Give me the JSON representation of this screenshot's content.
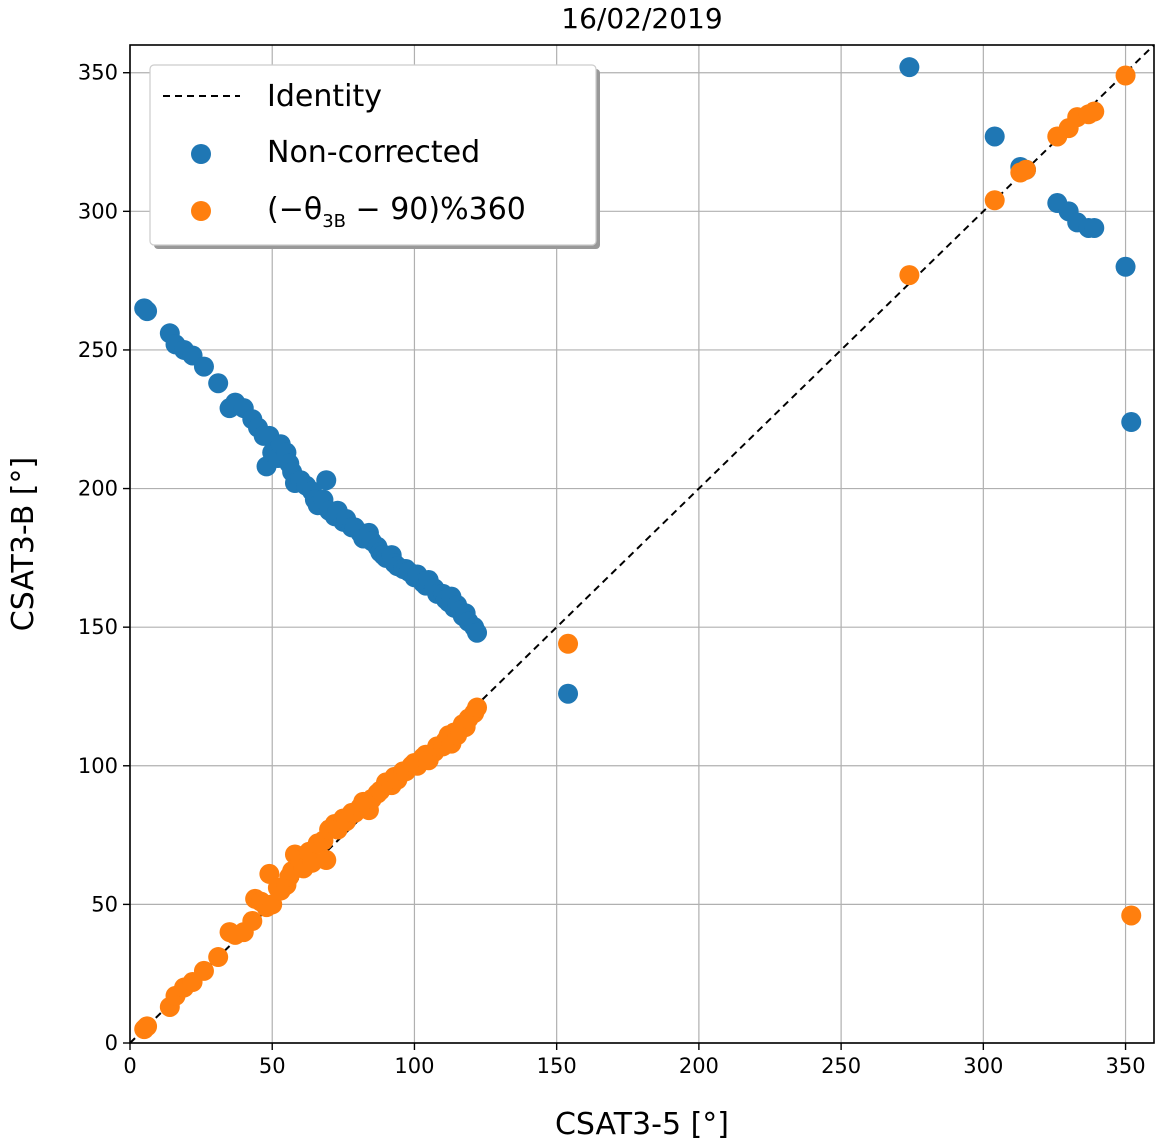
{
  "chart_data": {
    "type": "scatter",
    "title": "16/02/2019",
    "xlabel": "CSAT3-5 [°]",
    "ylabel": "CSAT3-B [°]",
    "xlim": [
      0,
      360
    ],
    "ylim": [
      0,
      360
    ],
    "xticks": [
      0,
      50,
      100,
      150,
      200,
      250,
      300,
      350
    ],
    "yticks": [
      0,
      50,
      100,
      150,
      200,
      250,
      300,
      350
    ],
    "grid": true,
    "legend_position": "top-left",
    "identity": {
      "name": "Identity",
      "color": "#000000",
      "style": "dashed",
      "from": [
        0,
        0
      ],
      "to": [
        360,
        360
      ]
    },
    "legend": {
      "identity": "Identity",
      "non_corrected": "Non-corrected",
      "corrected_prefix": "(−θ",
      "corrected_sub": "3B",
      "corrected_suffix": " − 90)%360"
    },
    "series": [
      {
        "name": "Non-corrected",
        "color": "#1f77b4",
        "points": [
          [
            5,
            265
          ],
          [
            6,
            264
          ],
          [
            14,
            256
          ],
          [
            16,
            252
          ],
          [
            19,
            250
          ],
          [
            22,
            248
          ],
          [
            26,
            244
          ],
          [
            31,
            238
          ],
          [
            35,
            229
          ],
          [
            37,
            231
          ],
          [
            40,
            229
          ],
          [
            43,
            225
          ],
          [
            45,
            222
          ],
          [
            47,
            219
          ],
          [
            48,
            208
          ],
          [
            49,
            219
          ],
          [
            50,
            213
          ],
          [
            52,
            211
          ],
          [
            53,
            216
          ],
          [
            55,
            213
          ],
          [
            56,
            209
          ],
          [
            57,
            206
          ],
          [
            58,
            202
          ],
          [
            60,
            203
          ],
          [
            62,
            201
          ],
          [
            64,
            199
          ],
          [
            65,
            196
          ],
          [
            66,
            194
          ],
          [
            68,
            196
          ],
          [
            69,
            203
          ],
          [
            70,
            192
          ],
          [
            72,
            190
          ],
          [
            73,
            192
          ],
          [
            75,
            188
          ],
          [
            76,
            189
          ],
          [
            78,
            186
          ],
          [
            79,
            186
          ],
          [
            81,
            184
          ],
          [
            82,
            182
          ],
          [
            84,
            184
          ],
          [
            85,
            181
          ],
          [
            87,
            179
          ],
          [
            88,
            177
          ],
          [
            89,
            176
          ],
          [
            90,
            175
          ],
          [
            92,
            176
          ],
          [
            93,
            173
          ],
          [
            94,
            172
          ],
          [
            96,
            171
          ],
          [
            97,
            171
          ],
          [
            98,
            170
          ],
          [
            100,
            168
          ],
          [
            101,
            169
          ],
          [
            103,
            166
          ],
          [
            104,
            165
          ],
          [
            105,
            167
          ],
          [
            107,
            164
          ],
          [
            108,
            162
          ],
          [
            110,
            162
          ],
          [
            111,
            160
          ],
          [
            112,
            159
          ],
          [
            113,
            161
          ],
          [
            114,
            157
          ],
          [
            115,
            158
          ],
          [
            116,
            156
          ],
          [
            117,
            154
          ],
          [
            118,
            155
          ],
          [
            119,
            152
          ],
          [
            121,
            150
          ],
          [
            122,
            148
          ],
          [
            154,
            126
          ],
          [
            274,
            352
          ],
          [
            304,
            327
          ],
          [
            313,
            316
          ],
          [
            315,
            315
          ],
          [
            326,
            303
          ],
          [
            330,
            300
          ],
          [
            333,
            296
          ],
          [
            337,
            294
          ],
          [
            339,
            294
          ],
          [
            350,
            280
          ],
          [
            352,
            224
          ]
        ]
      },
      {
        "name": "(−θ3B − 90)%360",
        "color": "#ff7f0e",
        "points": [
          [
            5,
            5
          ],
          [
            6,
            6
          ],
          [
            14,
            13
          ],
          [
            16,
            17
          ],
          [
            19,
            20
          ],
          [
            22,
            22
          ],
          [
            26,
            26
          ],
          [
            31,
            31
          ],
          [
            35,
            40
          ],
          [
            37,
            39
          ],
          [
            40,
            40
          ],
          [
            43,
            44
          ],
          [
            44,
            52
          ],
          [
            46,
            51
          ],
          [
            48,
            49
          ],
          [
            49,
            61
          ],
          [
            50,
            50
          ],
          [
            52,
            56
          ],
          [
            53,
            55
          ],
          [
            55,
            57
          ],
          [
            56,
            60
          ],
          [
            57,
            62
          ],
          [
            58,
            68
          ],
          [
            60,
            66
          ],
          [
            61,
            63
          ],
          [
            63,
            69
          ],
          [
            64,
            65
          ],
          [
            66,
            72
          ],
          [
            68,
            73
          ],
          [
            69,
            66
          ],
          [
            70,
            77
          ],
          [
            72,
            79
          ],
          [
            73,
            77
          ],
          [
            75,
            81
          ],
          [
            76,
            80
          ],
          [
            78,
            83
          ],
          [
            79,
            83
          ],
          [
            81,
            85
          ],
          [
            82,
            87
          ],
          [
            84,
            84
          ],
          [
            85,
            88
          ],
          [
            87,
            90
          ],
          [
            88,
            91
          ],
          [
            90,
            94
          ],
          [
            92,
            93
          ],
          [
            93,
            96
          ],
          [
            94,
            95
          ],
          [
            96,
            98
          ],
          [
            97,
            98
          ],
          [
            99,
            100
          ],
          [
            100,
            101
          ],
          [
            101,
            100
          ],
          [
            103,
            103
          ],
          [
            104,
            104
          ],
          [
            105,
            102
          ],
          [
            107,
            105
          ],
          [
            108,
            107
          ],
          [
            110,
            107
          ],
          [
            111,
            109
          ],
          [
            112,
            111
          ],
          [
            113,
            108
          ],
          [
            114,
            112
          ],
          [
            115,
            111
          ],
          [
            116,
            113
          ],
          [
            117,
            115
          ],
          [
            118,
            114
          ],
          [
            119,
            117
          ],
          [
            121,
            119
          ],
          [
            122,
            121
          ],
          [
            154,
            144
          ],
          [
            274,
            277
          ],
          [
            304,
            304
          ],
          [
            313,
            314
          ],
          [
            315,
            315
          ],
          [
            326,
            327
          ],
          [
            330,
            330
          ],
          [
            333,
            334
          ],
          [
            337,
            335
          ],
          [
            339,
            336
          ],
          [
            350,
            349
          ],
          [
            352,
            46
          ]
        ]
      }
    ]
  }
}
